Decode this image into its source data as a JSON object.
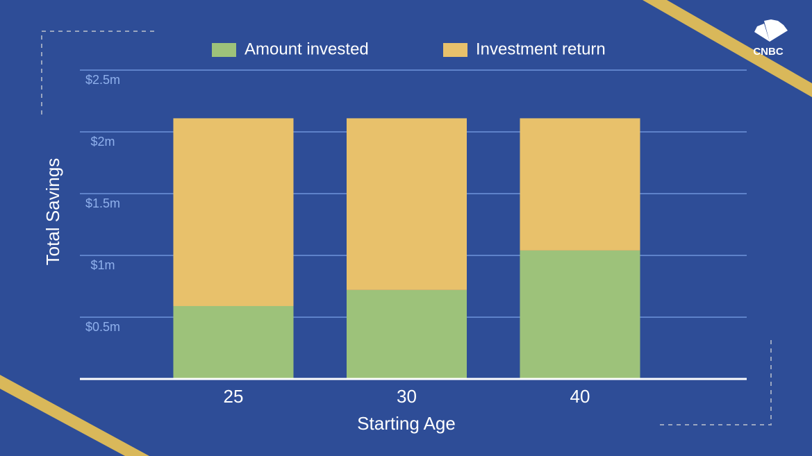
{
  "chart_data": {
    "type": "stacked-bar",
    "logo": "CNBC",
    "xlabel": "Starting Age",
    "ylabel": "Total Savings",
    "categories": [
      "25",
      "30",
      "40"
    ],
    "series": [
      {
        "name": "Amount invested",
        "color": "#9dc27a",
        "values": [
          0.59,
          0.72,
          1.04
        ]
      },
      {
        "name": "Investment return",
        "color": "#e8c16b",
        "values": [
          1.52,
          1.39,
          1.07
        ]
      }
    ],
    "ylim": [
      0,
      2.5
    ],
    "yticks": [
      {
        "value": 0.5,
        "label": "$0.5m"
      },
      {
        "value": 1,
        "label": "$1m"
      },
      {
        "value": 1.5,
        "label": "$1.5m"
      },
      {
        "value": 2,
        "label": "$2m"
      },
      {
        "value": 2.5,
        "label": "$2.5m"
      }
    ],
    "grid": true
  }
}
